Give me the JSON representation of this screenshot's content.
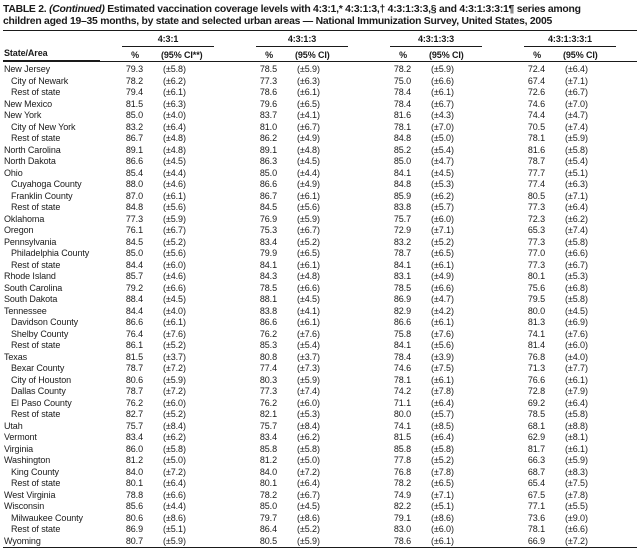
{
  "title": {
    "label": "TABLE 2.",
    "continued": "(Continued)",
    "line1_rest": "Estimated vaccination coverage levels with 4:3:1,* 4:3:1:3,† 4:3:1:3:3,§ and 4:3:1:3:3:1¶ series among",
    "line2": "children aged 19–35 months, by state and selected urban areas — National Immunization Survey, United States, 2005"
  },
  "table": {
    "state_col_header": "State/Area",
    "groups": [
      {
        "label": "4:3:1",
        "pct": "%",
        "ci": "(95% CI**)"
      },
      {
        "label": "4:3:1:3",
        "pct": "%",
        "ci": "(95% CI)"
      },
      {
        "label": "4:3:1:3:3",
        "pct": "%",
        "ci": "(95% CI)"
      },
      {
        "label": "4:3:1:3:3:1",
        "pct": "%",
        "ci": "(95% CI)"
      }
    ],
    "rows": [
      {
        "name": "New Jersey",
        "indent": false,
        "values": [
          "79.3",
          "(±5.8)",
          "78.5",
          "(±5.9)",
          "78.2",
          "(±5.9)",
          "72.4",
          "(±6.4)"
        ]
      },
      {
        "name": "City of Newark",
        "indent": true,
        "values": [
          "78.2",
          "(±6.2)",
          "77.3",
          "(±6.3)",
          "75.0",
          "(±6.6)",
          "67.4",
          "(±7.1)"
        ]
      },
      {
        "name": "Rest of state",
        "indent": true,
        "values": [
          "79.4",
          "(±6.1)",
          "78.6",
          "(±6.1)",
          "78.4",
          "(±6.1)",
          "72.6",
          "(±6.7)"
        ]
      },
      {
        "name": "New Mexico",
        "indent": false,
        "values": [
          "81.5",
          "(±6.3)",
          "79.6",
          "(±6.5)",
          "78.4",
          "(±6.7)",
          "74.6",
          "(±7.0)"
        ]
      },
      {
        "name": "New York",
        "indent": false,
        "values": [
          "85.0",
          "(±4.0)",
          "83.7",
          "(±4.1)",
          "81.6",
          "(±4.3)",
          "74.4",
          "(±4.7)"
        ]
      },
      {
        "name": "City of New York",
        "indent": true,
        "values": [
          "83.2",
          "(±6.4)",
          "81.0",
          "(±6.7)",
          "78.1",
          "(±7.0)",
          "70.5",
          "(±7.4)"
        ]
      },
      {
        "name": "Rest of state",
        "indent": true,
        "values": [
          "86.7",
          "(±4.8)",
          "86.2",
          "(±4.9)",
          "84.8",
          "(±5.0)",
          "78.1",
          "(±5.9)"
        ]
      },
      {
        "name": "North Carolina",
        "indent": false,
        "values": [
          "89.1",
          "(±4.8)",
          "89.1",
          "(±4.8)",
          "85.2",
          "(±5.4)",
          "81.6",
          "(±5.8)"
        ]
      },
      {
        "name": "North Dakota",
        "indent": false,
        "values": [
          "86.6",
          "(±4.5)",
          "86.3",
          "(±4.5)",
          "85.0",
          "(±4.7)",
          "78.7",
          "(±5.4)"
        ]
      },
      {
        "name": "Ohio",
        "indent": false,
        "values": [
          "85.4",
          "(±4.4)",
          "85.0",
          "(±4.4)",
          "84.1",
          "(±4.5)",
          "77.7",
          "(±5.1)"
        ]
      },
      {
        "name": "Cuyahoga County",
        "indent": true,
        "values": [
          "88.0",
          "(±4.6)",
          "86.6",
          "(±4.9)",
          "84.8",
          "(±5.3)",
          "77.4",
          "(±6.3)"
        ]
      },
      {
        "name": "Franklin County",
        "indent": true,
        "values": [
          "87.0",
          "(±6.1)",
          "86.7",
          "(±6.1)",
          "85.9",
          "(±6.2)",
          "80.5",
          "(±7.1)"
        ]
      },
      {
        "name": "Rest of state",
        "indent": true,
        "values": [
          "84.8",
          "(±5.6)",
          "84.5",
          "(±5.6)",
          "83.8",
          "(±5.7)",
          "77.3",
          "(±6.4)"
        ]
      },
      {
        "name": "Oklahoma",
        "indent": false,
        "values": [
          "77.3",
          "(±5.9)",
          "76.9",
          "(±5.9)",
          "75.7",
          "(±6.0)",
          "72.3",
          "(±6.2)"
        ]
      },
      {
        "name": "Oregon",
        "indent": false,
        "values": [
          "76.1",
          "(±6.7)",
          "75.3",
          "(±6.7)",
          "72.9",
          "(±7.1)",
          "65.3",
          "(±7.4)"
        ]
      },
      {
        "name": "Pennsylvania",
        "indent": false,
        "values": [
          "84.5",
          "(±5.2)",
          "83.4",
          "(±5.2)",
          "83.2",
          "(±5.2)",
          "77.3",
          "(±5.8)"
        ]
      },
      {
        "name": "Philadelphia County",
        "indent": true,
        "values": [
          "85.0",
          "(±5.6)",
          "79.9",
          "(±6.5)",
          "78.7",
          "(±6.5)",
          "77.0",
          "(±6.6)"
        ]
      },
      {
        "name": "Rest of state",
        "indent": true,
        "values": [
          "84.4",
          "(±6.0)",
          "84.1",
          "(±6.1)",
          "84.1",
          "(±6.1)",
          "77.3",
          "(±6.7)"
        ]
      },
      {
        "name": "Rhode Island",
        "indent": false,
        "values": [
          "85.7",
          "(±4.6)",
          "84.3",
          "(±4.8)",
          "83.1",
          "(±4.9)",
          "80.1",
          "(±5.3)"
        ]
      },
      {
        "name": "South Carolina",
        "indent": false,
        "values": [
          "79.2",
          "(±6.6)",
          "78.5",
          "(±6.6)",
          "78.5",
          "(±6.6)",
          "75.6",
          "(±6.8)"
        ]
      },
      {
        "name": "South Dakota",
        "indent": false,
        "values": [
          "88.4",
          "(±4.5)",
          "88.1",
          "(±4.5)",
          "86.9",
          "(±4.7)",
          "79.5",
          "(±5.8)"
        ]
      },
      {
        "name": "Tennessee",
        "indent": false,
        "values": [
          "84.4",
          "(±4.0)",
          "83.8",
          "(±4.1)",
          "82.9",
          "(±4.2)",
          "80.0",
          "(±4.5)"
        ]
      },
      {
        "name": "Davidson County",
        "indent": true,
        "values": [
          "86.6",
          "(±6.1)",
          "86.6",
          "(±6.1)",
          "86.6",
          "(±6.1)",
          "81.3",
          "(±6.9)"
        ]
      },
      {
        "name": "Shelby County",
        "indent": true,
        "values": [
          "76.4",
          "(±7.6)",
          "76.2",
          "(±7.6)",
          "75.8",
          "(±7.6)",
          "74.1",
          "(±7.6)"
        ]
      },
      {
        "name": "Rest of state",
        "indent": true,
        "values": [
          "86.1",
          "(±5.2)",
          "85.3",
          "(±5.4)",
          "84.1",
          "(±5.6)",
          "81.4",
          "(±6.0)"
        ]
      },
      {
        "name": "Texas",
        "indent": false,
        "values": [
          "81.5",
          "(±3.7)",
          "80.8",
          "(±3.7)",
          "78.4",
          "(±3.9)",
          "76.8",
          "(±4.0)"
        ]
      },
      {
        "name": "Bexar County",
        "indent": true,
        "values": [
          "78.7",
          "(±7.2)",
          "77.4",
          "(±7.3)",
          "74.6",
          "(±7.5)",
          "71.3",
          "(±7.7)"
        ]
      },
      {
        "name": "City of Houston",
        "indent": true,
        "values": [
          "80.6",
          "(±5.9)",
          "80.3",
          "(±5.9)",
          "78.1",
          "(±6.1)",
          "76.6",
          "(±6.1)"
        ]
      },
      {
        "name": "Dallas County",
        "indent": true,
        "values": [
          "78.7",
          "(±7.2)",
          "77.3",
          "(±7.4)",
          "74.2",
          "(±7.8)",
          "72.8",
          "(±7.9)"
        ]
      },
      {
        "name": "El Paso County",
        "indent": true,
        "values": [
          "76.2",
          "(±6.0)",
          "76.2",
          "(±6.0)",
          "71.1",
          "(±6.4)",
          "69.2",
          "(±6.4)"
        ]
      },
      {
        "name": "Rest of state",
        "indent": true,
        "values": [
          "82.7",
          "(±5.2)",
          "82.1",
          "(±5.3)",
          "80.0",
          "(±5.7)",
          "78.5",
          "(±5.8)"
        ]
      },
      {
        "name": "Utah",
        "indent": false,
        "values": [
          "75.7",
          "(±8.4)",
          "75.7",
          "(±8.4)",
          "74.1",
          "(±8.5)",
          "68.1",
          "(±8.8)"
        ]
      },
      {
        "name": "Vermont",
        "indent": false,
        "values": [
          "83.4",
          "(±6.2)",
          "83.4",
          "(±6.2)",
          "81.5",
          "(±6.4)",
          "62.9",
          "(±8.1)"
        ]
      },
      {
        "name": "Virginia",
        "indent": false,
        "values": [
          "86.0",
          "(±5.8)",
          "85.8",
          "(±5.8)",
          "85.8",
          "(±5.8)",
          "81.7",
          "(±6.1)"
        ]
      },
      {
        "name": "Washington",
        "indent": false,
        "values": [
          "81.2",
          "(±5.0)",
          "81.2",
          "(±5.0)",
          "77.8",
          "(±5.2)",
          "66.3",
          "(±5.9)"
        ]
      },
      {
        "name": "King County",
        "indent": true,
        "values": [
          "84.0",
          "(±7.2)",
          "84.0",
          "(±7.2)",
          "76.8",
          "(±7.8)",
          "68.7",
          "(±8.3)"
        ]
      },
      {
        "name": "Rest of state",
        "indent": true,
        "values": [
          "80.1",
          "(±6.4)",
          "80.1",
          "(±6.4)",
          "78.2",
          "(±6.5)",
          "65.4",
          "(±7.5)"
        ]
      },
      {
        "name": "West Virginia",
        "indent": false,
        "values": [
          "78.8",
          "(±6.6)",
          "78.2",
          "(±6.7)",
          "74.9",
          "(±7.1)",
          "67.5",
          "(±7.8)"
        ]
      },
      {
        "name": "Wisconsin",
        "indent": false,
        "values": [
          "85.6",
          "(±4.4)",
          "85.0",
          "(±4.5)",
          "82.2",
          "(±5.1)",
          "77.1",
          "(±5.5)"
        ]
      },
      {
        "name": "Milwaukee County",
        "indent": true,
        "values": [
          "80.6",
          "(±8.6)",
          "79.7",
          "(±8.6)",
          "79.1",
          "(±8.6)",
          "73.6",
          "(±9.0)"
        ]
      },
      {
        "name": "Rest of state",
        "indent": true,
        "values": [
          "86.9",
          "(±5.1)",
          "86.4",
          "(±5.2)",
          "83.0",
          "(±6.0)",
          "78.1",
          "(±6.6)"
        ]
      },
      {
        "name": "Wyoming",
        "indent": false,
        "values": [
          "80.7",
          "(±5.9)",
          "80.5",
          "(±5.9)",
          "78.6",
          "(±6.1)",
          "66.9",
          "(±7.2)"
        ]
      }
    ]
  }
}
